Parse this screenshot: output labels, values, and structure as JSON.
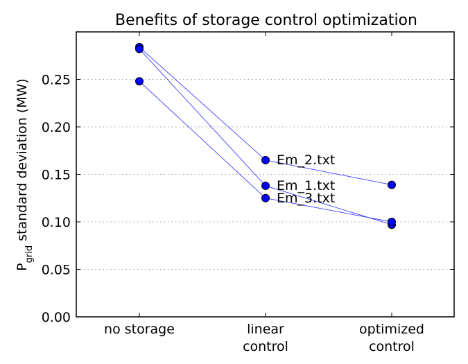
{
  "chart_data": {
    "type": "line",
    "title": "Benefits of storage control optimization",
    "ylabel_main": "P",
    "ylabel_sub": "grid",
    "ylabel_rest": " standard deviation (MW)",
    "xlabel": "",
    "categories": [
      [
        "no storage"
      ],
      [
        "linear",
        "control"
      ],
      [
        "optimized",
        "control"
      ]
    ],
    "ylim": [
      0.0,
      0.3
    ],
    "yticks": [
      0.0,
      0.05,
      0.1,
      0.15,
      0.2,
      0.25
    ],
    "ytick_labels": [
      "0.00",
      "0.05",
      "0.10",
      "0.15",
      "0.20",
      "0.25"
    ],
    "grid": true,
    "series": [
      {
        "name": "Em_2.txt",
        "values": [
          0.284,
          0.165,
          0.139
        ]
      },
      {
        "name": "Em_1.txt",
        "values": [
          0.282,
          0.138,
          0.097
        ]
      },
      {
        "name": "Em_3.txt",
        "values": [
          0.248,
          0.125,
          0.1
        ]
      }
    ],
    "label_at_category": 1,
    "colors": {
      "marker": "#0000ff",
      "line": "#3b3bff"
    }
  }
}
